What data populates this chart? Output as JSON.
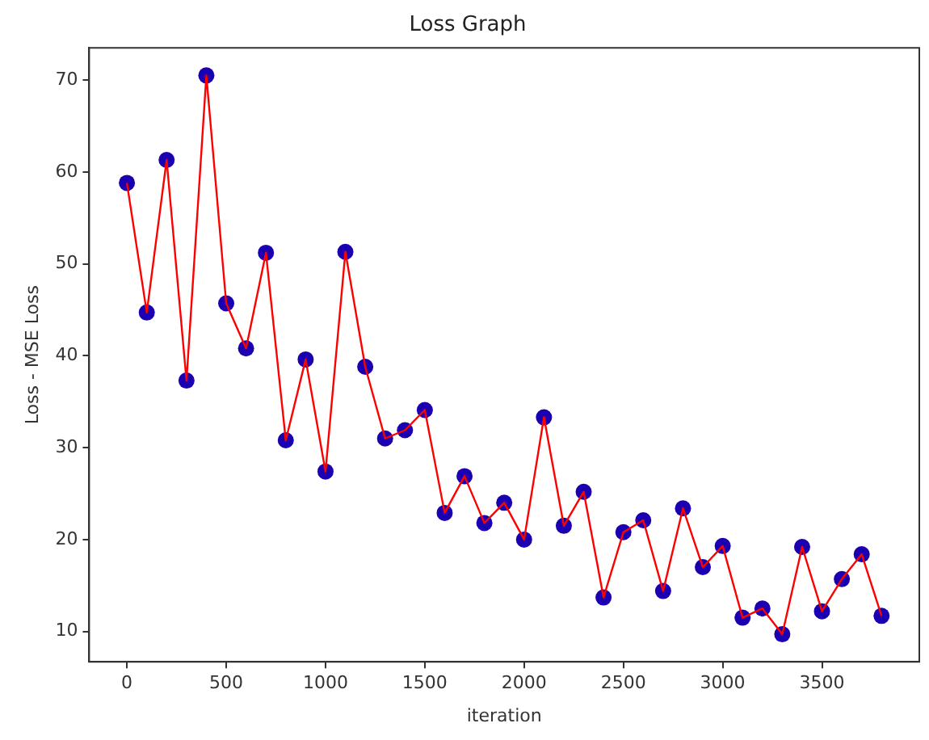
{
  "chart_data": {
    "type": "line",
    "title": "Loss Graph",
    "xlabel": "iteration",
    "ylabel": "Loss - MSE Loss",
    "x": [
      0,
      100,
      200,
      300,
      400,
      500,
      600,
      700,
      800,
      900,
      1000,
      1100,
      1200,
      1300,
      1400,
      1500,
      1600,
      1700,
      1800,
      1900,
      2000,
      2100,
      2200,
      2300,
      2400,
      2500,
      2600,
      2700,
      2800,
      2900,
      3000,
      3100,
      3200,
      3300,
      3400,
      3500,
      3600,
      3700,
      3800
    ],
    "series": [
      {
        "type": "scatter",
        "color": "#1a00b0",
        "marker": "circle",
        "values": [
          58.8,
          44.7,
          61.3,
          37.3,
          70.5,
          45.7,
          40.8,
          51.2,
          30.8,
          39.6,
          27.4,
          51.3,
          38.8,
          31.0,
          31.9,
          34.1,
          22.9,
          26.9,
          21.8,
          24.0,
          20.0,
          33.3,
          21.5,
          25.2,
          13.7,
          20.8,
          22.1,
          14.4,
          23.4,
          17.0,
          19.3,
          11.5,
          12.5,
          9.7,
          19.2,
          12.2,
          15.7,
          18.4,
          11.7
        ]
      },
      {
        "type": "line",
        "color": "#ff0000",
        "marker": "none",
        "line_style": "solid",
        "values": [
          58.8,
          44.7,
          61.3,
          37.3,
          70.5,
          45.7,
          40.8,
          51.2,
          30.8,
          39.6,
          27.4,
          51.3,
          38.8,
          31.0,
          31.9,
          34.1,
          22.9,
          26.9,
          21.8,
          24.0,
          20.0,
          33.3,
          21.5,
          25.2,
          13.7,
          20.8,
          22.1,
          14.4,
          23.4,
          17.0,
          19.3,
          11.5,
          12.5,
          9.7,
          19.2,
          12.2,
          15.7,
          18.4,
          11.7
        ]
      }
    ],
    "xlim": [
      -190,
      3990
    ],
    "xticks": [
      0,
      500,
      1000,
      1500,
      2000,
      2500,
      3000,
      3500
    ],
    "ylim": [
      6.7,
      73.5
    ],
    "yticks": [
      10,
      20,
      30,
      40,
      50,
      60,
      70
    ],
    "grid": false,
    "legend": false
  }
}
